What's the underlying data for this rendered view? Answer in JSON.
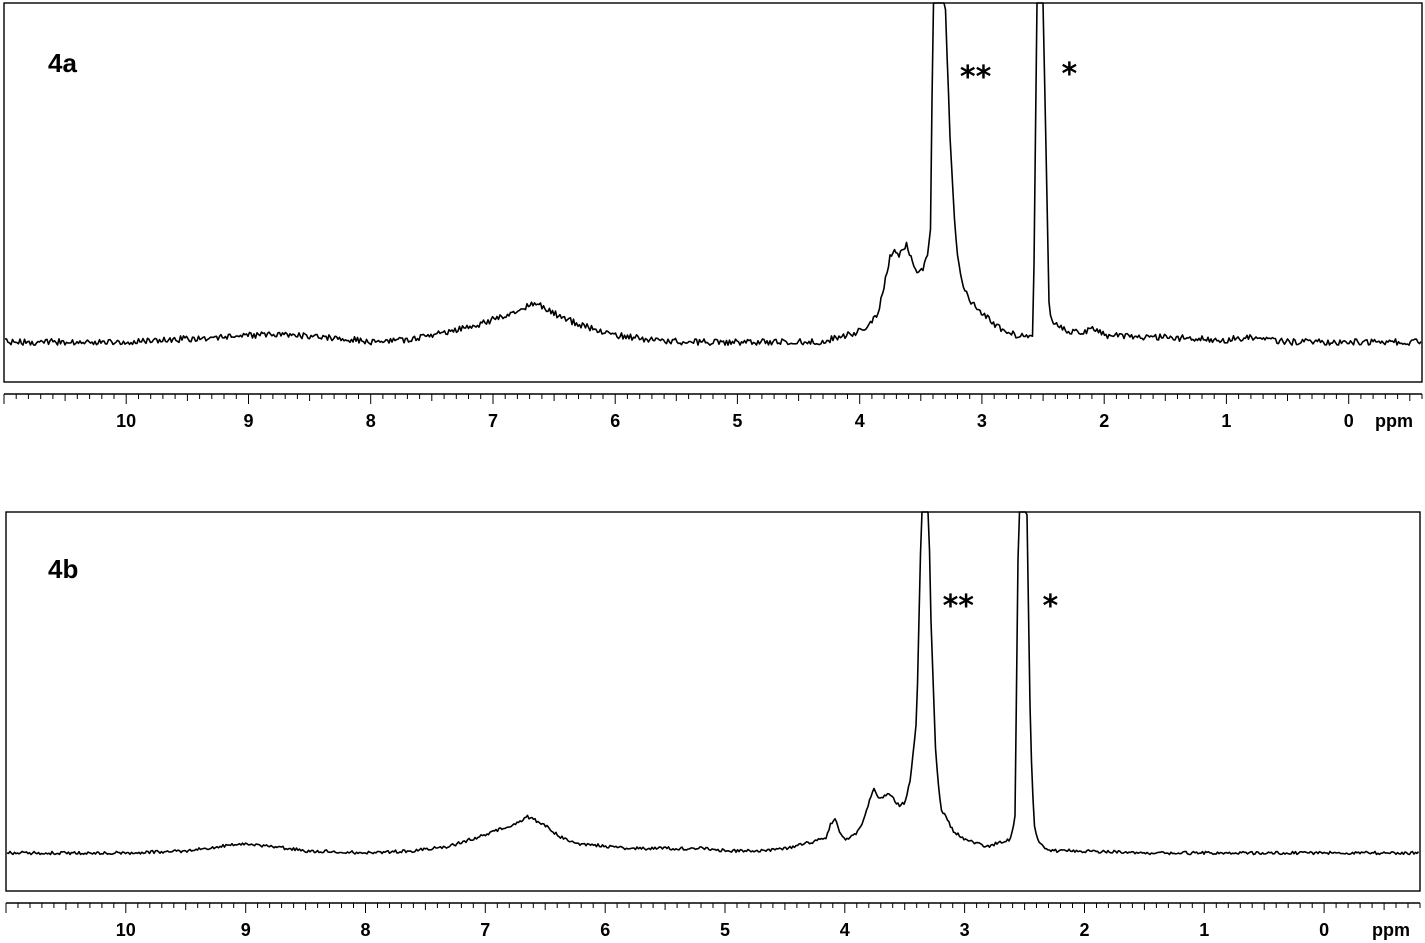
{
  "chart_data": [
    {
      "type": "line",
      "panel_label": "4a",
      "x_unit": "ppm",
      "xlim": [
        11.0,
        -0.6
      ],
      "x_reversed": true,
      "x_ticks": [
        10,
        9,
        8,
        7,
        6,
        5,
        4,
        3,
        2,
        1,
        0
      ],
      "annotations": [
        {
          "text": "**",
          "x": 3.0
        },
        {
          "text": "*",
          "x": 2.3
        }
      ],
      "series": [
        {
          "x": [
            11.0,
            10.0,
            9.3,
            8.9,
            8.6,
            8.3,
            8.0,
            7.7,
            7.4,
            7.1,
            6.9,
            6.75,
            6.65,
            6.55,
            6.4,
            6.2,
            6.0,
            5.7,
            5.4,
            5.0,
            4.6,
            4.3,
            4.2,
            4.1,
            4.0,
            3.95,
            3.85,
            3.8,
            3.75,
            3.72,
            3.68,
            3.62,
            3.6,
            3.56,
            3.52,
            3.48,
            3.45,
            3.42,
            3.4,
            3.3,
            3.26,
            3.22,
            3.2,
            3.17,
            3.1,
            3.0,
            2.9,
            2.8,
            2.7,
            2.62,
            2.58,
            2.55,
            2.5,
            2.45,
            2.42,
            2.38,
            2.3,
            2.2,
            2.1,
            2.0,
            1.5,
            1.0,
            0.85,
            0.5,
            -0.6
          ],
          "y": [
            0.0,
            0.0,
            0.02,
            0.03,
            0.03,
            0.02,
            0.0,
            0.01,
            0.04,
            0.08,
            0.12,
            0.15,
            0.17,
            0.14,
            0.1,
            0.06,
            0.03,
            0.01,
            0.0,
            0.0,
            0.0,
            0.0,
            0.02,
            0.03,
            0.05,
            0.07,
            0.12,
            0.25,
            0.38,
            0.41,
            0.38,
            0.43,
            0.41,
            0.34,
            0.31,
            0.33,
            0.37,
            0.5,
            1.5,
            1.5,
            0.9,
            0.5,
            0.39,
            0.27,
            0.18,
            0.13,
            0.08,
            0.04,
            0.03,
            0.03,
            0.04,
            1.5,
            1.5,
            0.15,
            0.09,
            0.07,
            0.05,
            0.04,
            0.06,
            0.03,
            0.02,
            0.01,
            0.02,
            0.0,
            0.0
          ]
        }
      ]
    },
    {
      "type": "line",
      "panel_label": "4b",
      "x_unit": "ppm",
      "xlim": [
        11.0,
        -0.8
      ],
      "x_reversed": true,
      "x_ticks": [
        10,
        9,
        8,
        7,
        6,
        5,
        4,
        3,
        2,
        1,
        0
      ],
      "annotations": [
        {
          "text": "**",
          "x": 3.0
        },
        {
          "text": "*",
          "x": 2.3
        }
      ],
      "series": [
        {
          "x": [
            11.0,
            10.0,
            9.5,
            9.2,
            9.0,
            8.8,
            8.5,
            8.0,
            7.6,
            7.3,
            7.0,
            6.8,
            6.7,
            6.65,
            6.6,
            6.5,
            6.4,
            6.3,
            6.2,
            6.0,
            5.8,
            5.5,
            5.2,
            5.0,
            4.7,
            4.5,
            4.35,
            4.25,
            4.15,
            4.12,
            4.08,
            4.05,
            4.0,
            3.95,
            3.9,
            3.85,
            3.8,
            3.76,
            3.72,
            3.68,
            3.64,
            3.6,
            3.55,
            3.5,
            3.45,
            3.4,
            3.36,
            3.3,
            3.28,
            3.24,
            3.2,
            3.1,
            3.0,
            2.9,
            2.8,
            2.7,
            2.62,
            2.58,
            2.55,
            2.48,
            2.45,
            2.42,
            2.38,
            2.3,
            2.1,
            1.5,
            1.0,
            0.0,
            -0.8
          ],
          "y": [
            0.0,
            0.0,
            0.01,
            0.03,
            0.04,
            0.03,
            0.01,
            0.0,
            0.01,
            0.03,
            0.08,
            0.12,
            0.14,
            0.16,
            0.15,
            0.12,
            0.08,
            0.05,
            0.04,
            0.03,
            0.02,
            0.02,
            0.02,
            0.01,
            0.01,
            0.02,
            0.04,
            0.05,
            0.07,
            0.13,
            0.15,
            0.1,
            0.06,
            0.07,
            0.09,
            0.14,
            0.22,
            0.28,
            0.25,
            0.24,
            0.27,
            0.24,
            0.21,
            0.22,
            0.33,
            0.6,
            1.5,
            1.5,
            1.0,
            0.42,
            0.2,
            0.1,
            0.06,
            0.04,
            0.03,
            0.05,
            0.06,
            0.15,
            1.5,
            1.5,
            0.5,
            0.12,
            0.05,
            0.01,
            0.01,
            0.0,
            0.0,
            0.0,
            0.0
          ]
        }
      ]
    }
  ]
}
